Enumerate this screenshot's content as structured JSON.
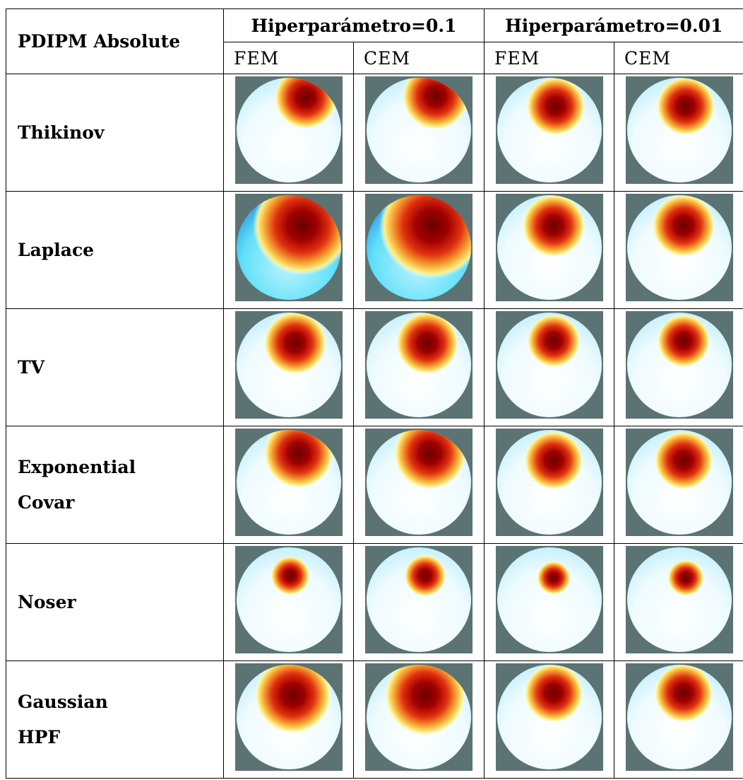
{
  "table": {
    "corner": "PDIPM Absolute",
    "groups": [
      "Hiperparámetro=0.1",
      "Hiperparámetro=0.01"
    ],
    "subheaders": [
      "FEM",
      "CEM",
      "FEM",
      "CEM"
    ],
    "rows": [
      [
        "Thikinov"
      ],
      [
        "Laplace"
      ],
      [
        "TV"
      ],
      [
        "Exponential",
        "Covar"
      ],
      [
        "Noser"
      ],
      [
        "Gaussian",
        "HPF"
      ]
    ]
  }
}
